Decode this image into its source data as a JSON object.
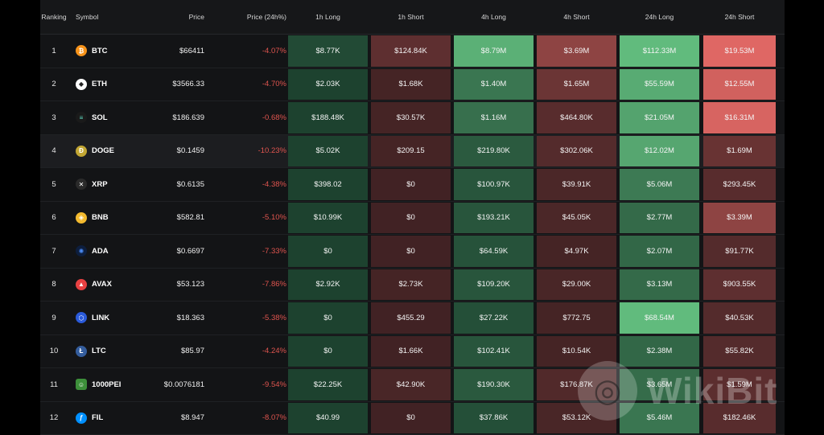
{
  "headers": {
    "ranking": "Ranking",
    "symbol": "Symbol",
    "price": "Price",
    "change": "Price (24h%)",
    "l1h": "1h Long",
    "s1h": "1h Short",
    "l4h": "4h Long",
    "s4h": "4h Short",
    "l24h": "24h Long",
    "s24h": "24h Short"
  },
  "rows": [
    {
      "rank": "1",
      "symbol": "BTC",
      "icon": "bitcoin-icon",
      "icon_glyph": "₿",
      "icon_color": "#f7931a",
      "price": "$66411",
      "change": "-4.07%",
      "l1h": "$8.77K",
      "s1h": "$124.84K",
      "l4h": "$8.79M",
      "s4h": "$3.69M",
      "l24h": "$112.33M",
      "s24h": "$19.53M",
      "lv": [
        0.15,
        0.25,
        0.78,
        0.5,
        0.85,
        0.92
      ]
    },
    {
      "rank": "2",
      "symbol": "ETH",
      "icon": "ethereum-icon",
      "icon_glyph": "◆",
      "icon_color": "#ffffff",
      "icon_text": "#222222",
      "price": "$3566.33",
      "change": "-4.70%",
      "l1h": "$2.03K",
      "s1h": "$1.68K",
      "l4h": "$1.40M",
      "s4h": "$1.65M",
      "l24h": "$55.59M",
      "s24h": "$12.55M",
      "lv": [
        0.1,
        0.12,
        0.42,
        0.32,
        0.75,
        0.85
      ]
    },
    {
      "rank": "3",
      "symbol": "SOL",
      "icon": "solana-icon",
      "icon_glyph": "≡",
      "icon_color": "#1a1a1a",
      "icon_text": "#5ee0c8",
      "price": "$186.639",
      "change": "-0.68%",
      "l1h": "$188.48K",
      "s1h": "$30.57K",
      "l4h": "$1.16M",
      "s4h": "$464.80K",
      "l24h": "$21.05M",
      "s24h": "$16.31M",
      "lv": [
        0.1,
        0.12,
        0.38,
        0.22,
        0.7,
        0.88
      ]
    },
    {
      "rank": "4",
      "symbol": "DOGE",
      "icon": "dogecoin-icon",
      "icon_glyph": "Ð",
      "icon_color": "#c2a633",
      "price": "$0.1459",
      "change": "-10.23%",
      "l1h": "$5.02K",
      "s1h": "$209.15",
      "l4h": "$219.80K",
      "s4h": "$302.06K",
      "l24h": "$12.02M",
      "s24h": "$1.69M",
      "lv": [
        0.1,
        0.12,
        0.25,
        0.2,
        0.72,
        0.3
      ]
    },
    {
      "rank": "5",
      "symbol": "XRP",
      "icon": "xrp-icon",
      "icon_glyph": "✕",
      "icon_color": "#2a2a2a",
      "price": "$0.6135",
      "change": "-4.38%",
      "l1h": "$398.02",
      "s1h": "$0",
      "l4h": "$100.97K",
      "s4h": "$39.91K",
      "l24h": "$5.06M",
      "s24h": "$293.45K",
      "lv": [
        0.1,
        0.1,
        0.22,
        0.15,
        0.45,
        0.22
      ]
    },
    {
      "rank": "6",
      "symbol": "BNB",
      "icon": "bnb-icon",
      "icon_glyph": "◈",
      "icon_color": "#f3ba2f",
      "price": "$582.81",
      "change": "-5.10%",
      "l1h": "$10.99K",
      "s1h": "$0",
      "l4h": "$193.21K",
      "s4h": "$45.05K",
      "l24h": "$2.77M",
      "s24h": "$3.39M",
      "lv": [
        0.1,
        0.1,
        0.22,
        0.15,
        0.35,
        0.5
      ]
    },
    {
      "rank": "7",
      "symbol": "ADA",
      "icon": "cardano-icon",
      "icon_glyph": "✺",
      "icon_color": "#0d1e3d",
      "icon_text": "#4b8bf5",
      "price": "$0.6697",
      "change": "-7.33%",
      "l1h": "$0",
      "s1h": "$0",
      "l4h": "$64.59K",
      "s4h": "$4.97K",
      "l24h": "$2.07M",
      "s24h": "$91.77K",
      "lv": [
        0.1,
        0.1,
        0.2,
        0.12,
        0.33,
        0.2
      ]
    },
    {
      "rank": "8",
      "symbol": "AVAX",
      "icon": "avalanche-icon",
      "icon_glyph": "▲",
      "icon_color": "#e84142",
      "price": "$53.123",
      "change": "-7.86%",
      "l1h": "$2.92K",
      "s1h": "$2.73K",
      "l4h": "$109.20K",
      "s4h": "$29.00K",
      "l24h": "$3.13M",
      "s24h": "$903.55K",
      "lv": [
        0.1,
        0.12,
        0.22,
        0.14,
        0.35,
        0.25
      ]
    },
    {
      "rank": "9",
      "symbol": "LINK",
      "icon": "chainlink-icon",
      "icon_glyph": "⬡",
      "icon_color": "#2a5ada",
      "price": "$18.363",
      "change": "-5.38%",
      "l1h": "$0",
      "s1h": "$455.29",
      "l4h": "$27.22K",
      "s4h": "$772.75",
      "l24h": "$68.54M",
      "s24h": "$40.53K",
      "lv": [
        0.1,
        0.1,
        0.18,
        0.12,
        0.85,
        0.2
      ]
    },
    {
      "rank": "10",
      "symbol": "LTC",
      "icon": "litecoin-icon",
      "icon_glyph": "Ł",
      "icon_color": "#345d9d",
      "price": "$85.97",
      "change": "-4.24%",
      "l1h": "$0",
      "s1h": "$1.66K",
      "l4h": "$102.41K",
      "s4h": "$10.54K",
      "l24h": "$2.38M",
      "s24h": "$55.82K",
      "lv": [
        0.1,
        0.1,
        0.22,
        0.12,
        0.33,
        0.2
      ]
    },
    {
      "rank": "11",
      "symbol": "1000PEI",
      "icon": "pepe-icon",
      "icon_glyph": "☺",
      "icon_color": "#3d8f3a",
      "icon_square": true,
      "price": "$0.0076181",
      "change": "-9.54%",
      "l1h": "$22.25K",
      "s1h": "$42.90K",
      "l4h": "$190.30K",
      "s4h": "$176.87K",
      "l24h": "$3.65M",
      "s24h": "$1.59M",
      "lv": [
        0.1,
        0.14,
        0.24,
        0.18,
        0.36,
        0.24
      ]
    },
    {
      "rank": "12",
      "symbol": "FIL",
      "icon": "filecoin-icon",
      "icon_glyph": "ƒ",
      "icon_color": "#0090ff",
      "price": "$8.947",
      "change": "-8.07%",
      "l1h": "$40.99",
      "s1h": "$0",
      "l4h": "$37.86K",
      "s4h": "$53.12K",
      "l24h": "$5.46M",
      "s24h": "$182.46K",
      "lv": [
        0.1,
        0.1,
        0.18,
        0.14,
        0.42,
        0.22
      ]
    }
  ],
  "colors": {
    "long": "#6fd38d",
    "short": "#ee6e6a",
    "long_base": "#143225",
    "short_base": "#2e1a1c",
    "change_negative": "#e0554f"
  },
  "watermark": {
    "logo_glyph": "◎",
    "text": "WikiBit"
  }
}
